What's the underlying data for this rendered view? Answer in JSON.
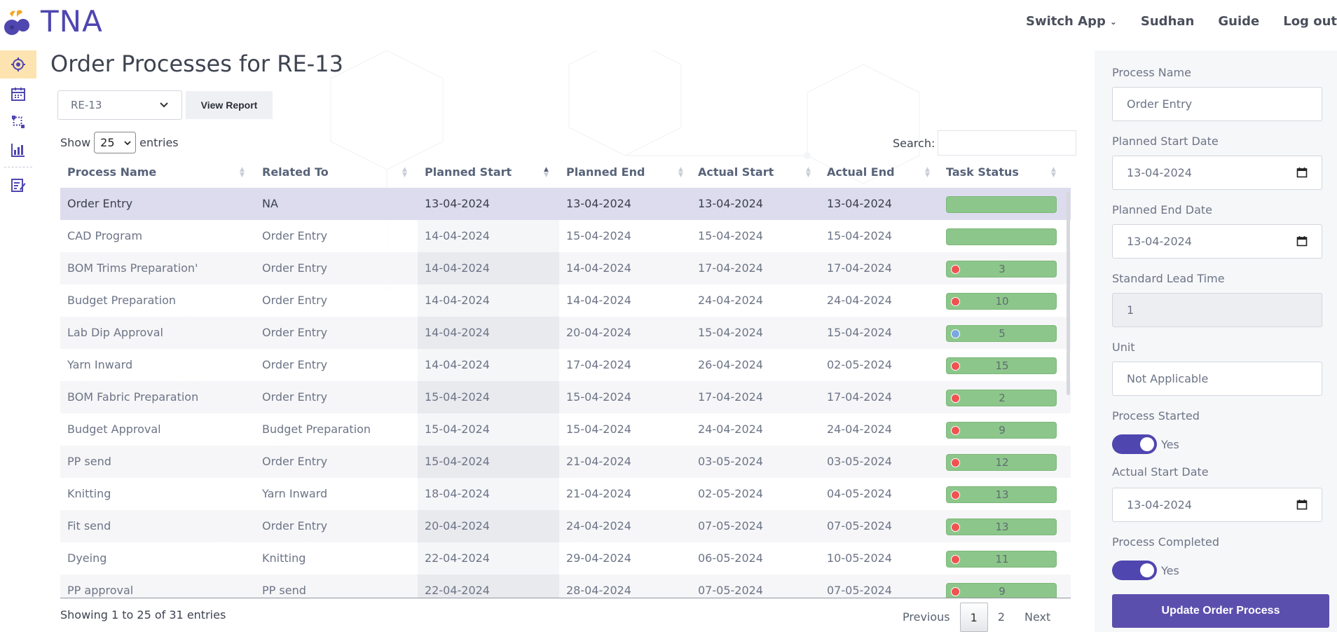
{
  "app": {
    "brand": "TNA"
  },
  "topnav": {
    "switch_app": "Switch App",
    "user": "Sudhan",
    "guide": "Guide",
    "logout": "Log out"
  },
  "page": {
    "title": "Order Processes for RE-13"
  },
  "controls": {
    "order_select": "RE-13",
    "view_report": "View Report",
    "show_label": "Show",
    "entries_value": "25",
    "entries_label": "entries",
    "search_label": "Search:"
  },
  "table": {
    "headers": [
      "Process Name",
      "Related To",
      "Planned Start",
      "Planned End",
      "Actual Start",
      "Actual End",
      "Task Status"
    ],
    "rows": [
      {
        "process": "Order Entry",
        "related": "NA",
        "planned_start": "13-04-2024",
        "planned_end": "13-04-2024",
        "actual_start": "13-04-2024",
        "actual_end": "13-04-2024",
        "status": "",
        "dot": "none"
      },
      {
        "process": "CAD Program",
        "related": "Order Entry",
        "planned_start": "14-04-2024",
        "planned_end": "15-04-2024",
        "actual_start": "15-04-2024",
        "actual_end": "15-04-2024",
        "status": "",
        "dot": "none"
      },
      {
        "process": "BOM Trims Preparation'",
        "related": "Order Entry",
        "planned_start": "14-04-2024",
        "planned_end": "14-04-2024",
        "actual_start": "17-04-2024",
        "actual_end": "17-04-2024",
        "status": "3",
        "dot": "red"
      },
      {
        "process": "Budget Preparation",
        "related": "Order Entry",
        "planned_start": "14-04-2024",
        "planned_end": "14-04-2024",
        "actual_start": "24-04-2024",
        "actual_end": "24-04-2024",
        "status": "10",
        "dot": "red"
      },
      {
        "process": "Lab Dip Approval",
        "related": "Order Entry",
        "planned_start": "14-04-2024",
        "planned_end": "20-04-2024",
        "actual_start": "15-04-2024",
        "actual_end": "15-04-2024",
        "status": "5",
        "dot": "blue"
      },
      {
        "process": "Yarn Inward",
        "related": "Order Entry",
        "planned_start": "14-04-2024",
        "planned_end": "17-04-2024",
        "actual_start": "26-04-2024",
        "actual_end": "02-05-2024",
        "status": "15",
        "dot": "red"
      },
      {
        "process": "BOM Fabric Preparation",
        "related": "Order Entry",
        "planned_start": "15-04-2024",
        "planned_end": "15-04-2024",
        "actual_start": "17-04-2024",
        "actual_end": "17-04-2024",
        "status": "2",
        "dot": "red"
      },
      {
        "process": "Budget Approval",
        "related": "Budget Preparation",
        "planned_start": "15-04-2024",
        "planned_end": "15-04-2024",
        "actual_start": "24-04-2024",
        "actual_end": "24-04-2024",
        "status": "9",
        "dot": "red"
      },
      {
        "process": "PP send",
        "related": "Order Entry",
        "planned_start": "15-04-2024",
        "planned_end": "21-04-2024",
        "actual_start": "03-05-2024",
        "actual_end": "03-05-2024",
        "status": "12",
        "dot": "red"
      },
      {
        "process": "Knitting",
        "related": "Yarn Inward",
        "planned_start": "18-04-2024",
        "planned_end": "21-04-2024",
        "actual_start": "02-05-2024",
        "actual_end": "04-05-2024",
        "status": "13",
        "dot": "red"
      },
      {
        "process": "Fit send",
        "related": "Order Entry",
        "planned_start": "20-04-2024",
        "planned_end": "24-04-2024",
        "actual_start": "07-05-2024",
        "actual_end": "07-05-2024",
        "status": "13",
        "dot": "red"
      },
      {
        "process": "Dyeing",
        "related": "Knitting",
        "planned_start": "22-04-2024",
        "planned_end": "29-04-2024",
        "actual_start": "06-05-2024",
        "actual_end": "10-05-2024",
        "status": "11",
        "dot": "red"
      },
      {
        "process": "PP approval",
        "related": "PP send",
        "planned_start": "22-04-2024",
        "planned_end": "28-04-2024",
        "actual_start": "07-05-2024",
        "actual_end": "07-05-2024",
        "status": "9",
        "dot": "red"
      }
    ],
    "info": "Showing 1 to 25 of 31 entries",
    "pager": {
      "previous": "Previous",
      "page1": "1",
      "page2": "2",
      "next": "Next"
    }
  },
  "form": {
    "process_name_label": "Process Name",
    "process_name_value": "Order Entry",
    "planned_start_label": "Planned Start Date",
    "planned_start_value": "13-04-2024",
    "planned_end_label": "Planned End Date",
    "planned_end_value": "13-04-2024",
    "lead_time_label": "Standard Lead Time",
    "lead_time_value": "1",
    "unit_label": "Unit",
    "unit_value": "Not Applicable",
    "process_started_label": "Process Started",
    "process_started_value": "Yes",
    "actual_start_label": "Actual Start Date",
    "actual_start_value": "13-04-2024",
    "process_completed_label": "Process Completed",
    "process_completed_value": "Yes",
    "update_button": "Update Order Process"
  },
  "colors": {
    "accent": "#4f46b0",
    "status_bar": "#8dc68a",
    "dot_red": "#f05252",
    "dot_blue": "#7aa7e0",
    "selected_row": "#dcdcee",
    "active_rail": "#fde3b0"
  }
}
